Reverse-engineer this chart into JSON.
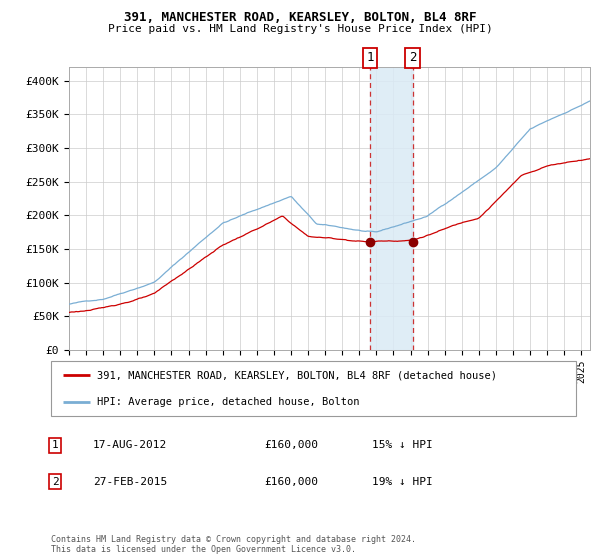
{
  "title1": "391, MANCHESTER ROAD, KEARSLEY, BOLTON, BL4 8RF",
  "title2": "Price paid vs. HM Land Registry's House Price Index (HPI)",
  "legend1": "391, MANCHESTER ROAD, KEARSLEY, BOLTON, BL4 8RF (detached house)",
  "legend2": "HPI: Average price, detached house, Bolton",
  "transaction1_label": "1",
  "transaction1_date": "17-AUG-2012",
  "transaction1_price": "£160,000",
  "transaction1_hpi": "15% ↓ HPI",
  "transaction1_year": 2012.625,
  "transaction1_val": 160000,
  "transaction2_label": "2",
  "transaction2_date": "27-FEB-2015",
  "transaction2_price": "£160,000",
  "transaction2_hpi": "19% ↓ HPI",
  "transaction2_year": 2015.125,
  "transaction2_val": 160000,
  "footer": "Contains HM Land Registry data © Crown copyright and database right 2024.\nThis data is licensed under the Open Government Licence v3.0.",
  "hpi_color": "#7aaed4",
  "price_color": "#cc0000",
  "marker_color": "#8b0000",
  "vline_color": "#cc3333",
  "shade_color": "#daeaf5",
  "grid_color": "#cccccc",
  "background_color": "#ffffff",
  "ylim": [
    0,
    420000
  ],
  "yticks": [
    0,
    50000,
    100000,
    150000,
    200000,
    250000,
    300000,
    350000,
    400000
  ],
  "ytick_labels": [
    "£0",
    "£50K",
    "£100K",
    "£150K",
    "£200K",
    "£250K",
    "£300K",
    "£350K",
    "£400K"
  ],
  "xlim_start": 1995,
  "xlim_end": 2025.5
}
